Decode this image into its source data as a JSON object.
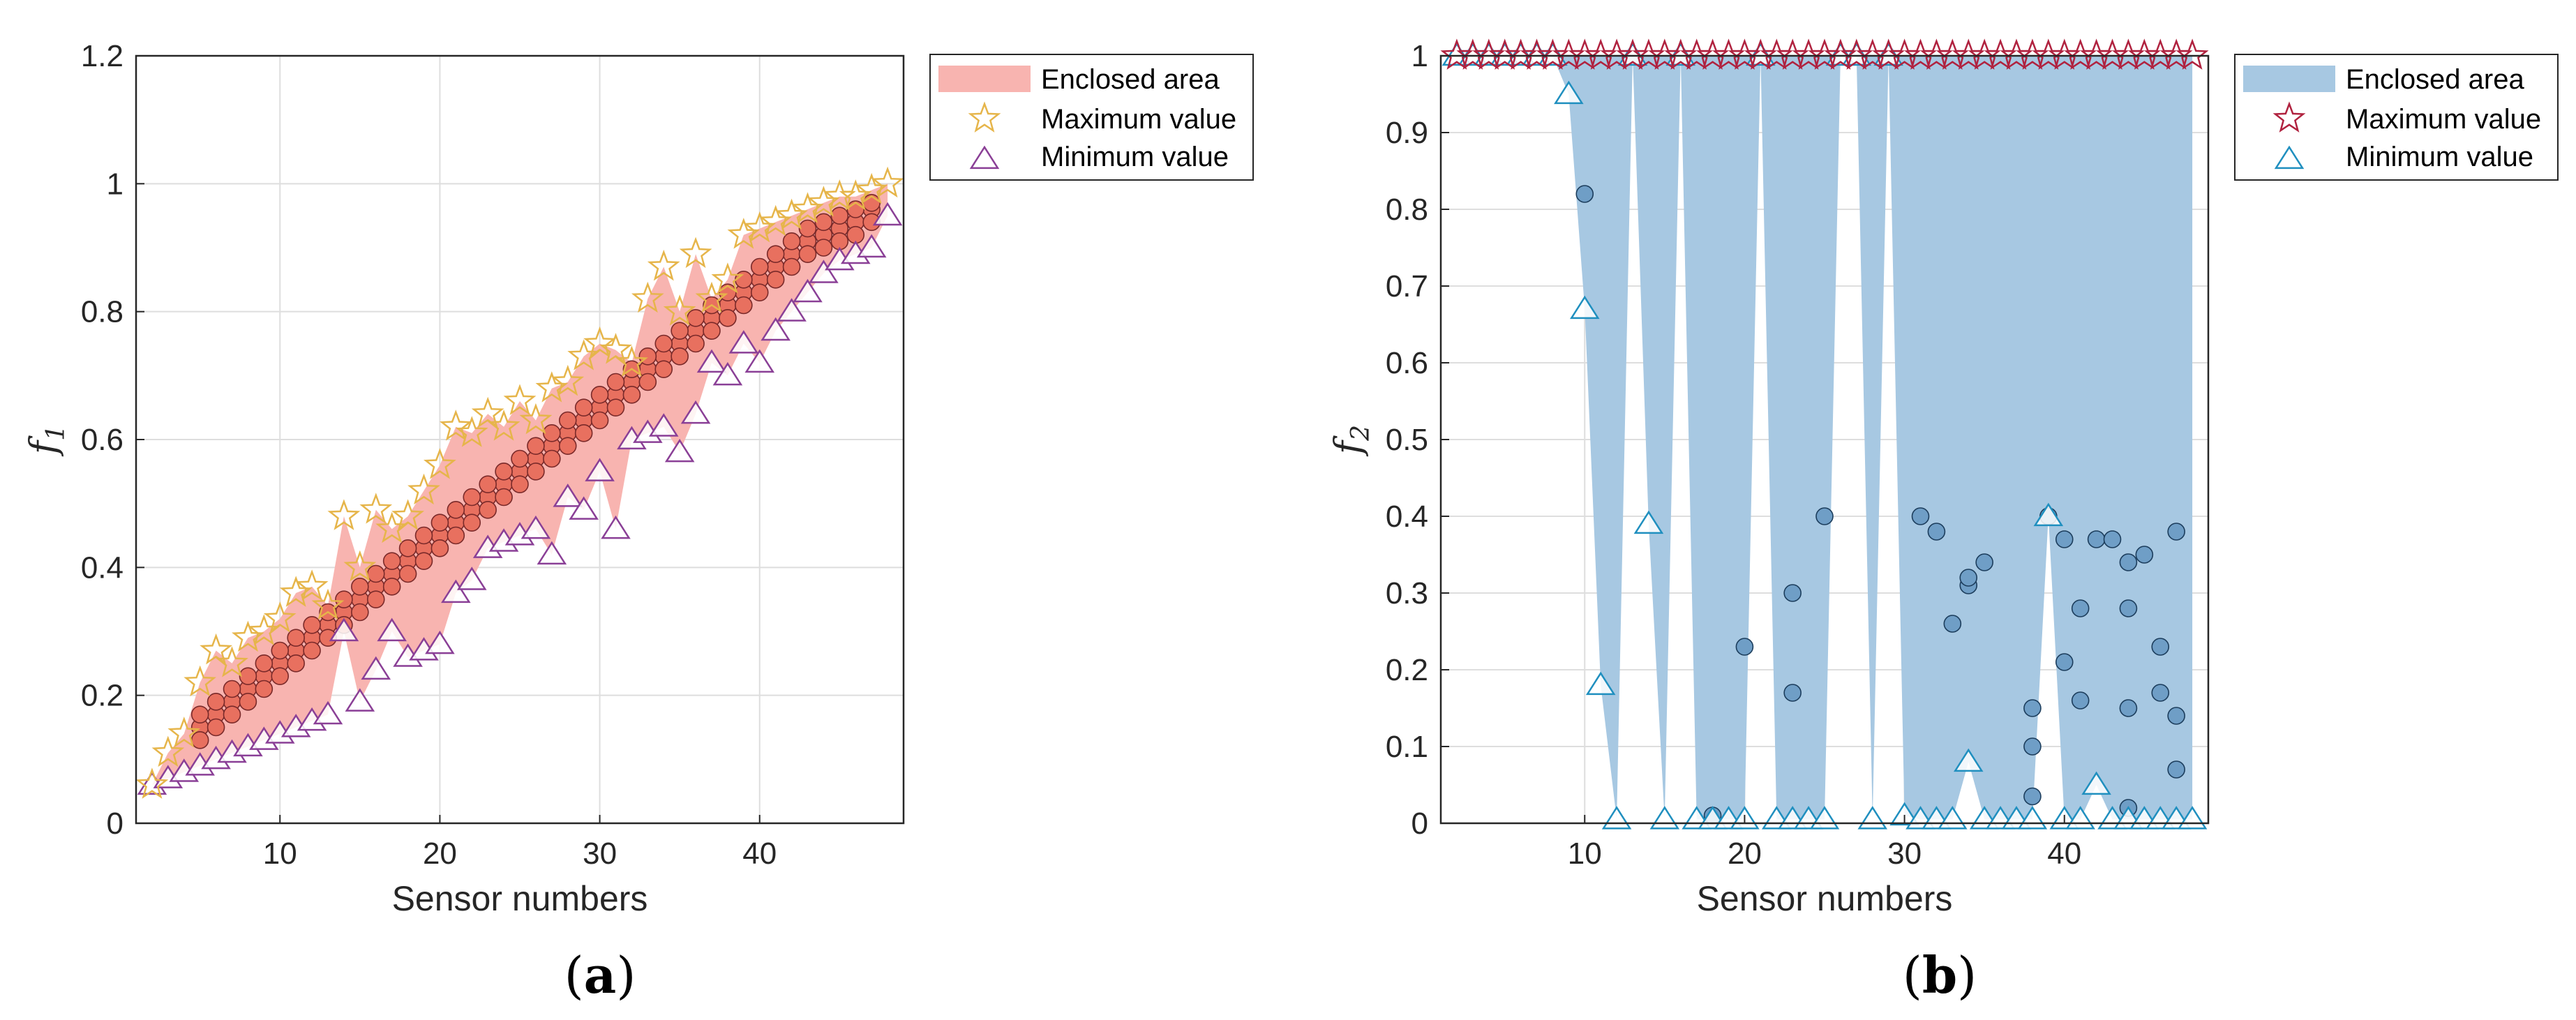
{
  "charts": [
    {
      "id": "a",
      "caption_open": "(",
      "caption_letter": "a",
      "caption_close": ")",
      "xlabel": "Sensor numbers",
      "ylabel_main": "f",
      "ylabel_sub": "1",
      "x_ticks": [
        "10",
        "20",
        "30",
        "40"
      ],
      "y_ticks": [
        "0",
        "0.2",
        "0.4",
        "0.6",
        "0.8",
        "1",
        "1.2"
      ],
      "legend": [
        "Enclosed area",
        "Maximum value",
        "Minimum value"
      ],
      "colors": {
        "area": "#f8b4b0",
        "max": "#e6b54a",
        "min": "#8a3f96",
        "dot_fill": "#e8705f",
        "dot_edge": "#7a2a2a"
      }
    },
    {
      "id": "b",
      "caption_open": "(",
      "caption_letter": "b",
      "caption_close": ")",
      "xlabel": "Sensor numbers",
      "ylabel_main": "f",
      "ylabel_sub": "2",
      "x_ticks": [
        "10",
        "20",
        "30",
        "40"
      ],
      "y_ticks": [
        "0",
        "0.1",
        "0.2",
        "0.3",
        "0.4",
        "0.5",
        "0.6",
        "0.7",
        "0.8",
        "0.9",
        "1"
      ],
      "legend": [
        "Enclosed area",
        "Maximum value",
        "Minimum value"
      ],
      "colors": {
        "area": "#a7c8e2",
        "max": "#b0223f",
        "min": "#1f8fbf",
        "dot_fill": "#6f9ec6",
        "dot_edge": "#1c3d5c"
      }
    }
  ],
  "chart_data": [
    {
      "type": "scatter",
      "xlabel": "Sensor numbers",
      "ylabel": "f1",
      "xlim": [
        1,
        49
      ],
      "ylim": [
        0,
        1.2
      ],
      "grid": true,
      "legend_position": "outside-right-top",
      "series": [
        {
          "name": "Enclosed area",
          "kind": "area"
        },
        {
          "name": "Maximum value",
          "marker": "star",
          "x": [
            2,
            3,
            4,
            5,
            6,
            7,
            8,
            9,
            10,
            11,
            12,
            13,
            14,
            15,
            16,
            17,
            18,
            19,
            20,
            21,
            22,
            23,
            24,
            25,
            26,
            27,
            28,
            29,
            30,
            31,
            32,
            33,
            34,
            35,
            36,
            37,
            38,
            39,
            40,
            41,
            42,
            43,
            44,
            45,
            46,
            47,
            48
          ],
          "y": [
            0.06,
            0.11,
            0.14,
            0.22,
            0.27,
            0.25,
            0.29,
            0.3,
            0.32,
            0.36,
            0.37,
            0.34,
            0.48,
            0.4,
            0.49,
            0.46,
            0.48,
            0.52,
            0.56,
            0.62,
            0.61,
            0.64,
            0.62,
            0.66,
            0.63,
            0.68,
            0.69,
            0.73,
            0.75,
            0.74,
            0.72,
            0.82,
            0.87,
            0.8,
            0.89,
            0.82,
            0.85,
            0.92,
            0.93,
            0.94,
            0.95,
            0.96,
            0.97,
            0.98,
            0.98,
            0.99,
            1.0
          ]
        },
        {
          "name": "Minimum value",
          "marker": "triangle",
          "x": [
            2,
            3,
            4,
            5,
            6,
            7,
            8,
            9,
            10,
            11,
            12,
            13,
            14,
            15,
            16,
            17,
            18,
            19,
            20,
            21,
            22,
            23,
            24,
            25,
            26,
            27,
            28,
            29,
            30,
            31,
            32,
            33,
            34,
            35,
            36,
            37,
            38,
            39,
            40,
            41,
            42,
            43,
            44,
            45,
            46,
            47,
            48
          ],
          "y": [
            0.06,
            0.07,
            0.08,
            0.09,
            0.1,
            0.11,
            0.12,
            0.13,
            0.14,
            0.15,
            0.16,
            0.17,
            0.3,
            0.19,
            0.24,
            0.3,
            0.26,
            0.27,
            0.28,
            0.36,
            0.38,
            0.43,
            0.44,
            0.45,
            0.46,
            0.42,
            0.51,
            0.49,
            0.55,
            0.46,
            0.6,
            0.61,
            0.62,
            0.58,
            0.64,
            0.72,
            0.7,
            0.75,
            0.72,
            0.77,
            0.8,
            0.83,
            0.86,
            0.88,
            0.89,
            0.9,
            0.95
          ]
        },
        {
          "name": "",
          "marker": "circle",
          "note": "f1 value per sensor",
          "x": [
            5,
            6,
            7,
            8,
            9,
            10,
            11,
            12,
            13,
            14,
            15,
            16,
            17,
            18,
            19,
            20,
            21,
            22,
            23,
            24,
            25,
            26,
            27,
            28,
            29,
            30,
            31,
            32,
            33,
            34,
            35,
            36,
            37,
            38,
            39,
            40,
            41,
            42,
            43,
            44,
            45,
            46,
            47,
            5,
            6,
            7,
            8,
            9,
            10,
            11,
            12,
            13,
            14,
            15,
            16,
            17,
            18,
            19,
            20,
            21,
            22,
            23,
            24,
            25,
            26,
            27,
            28,
            29,
            30,
            31,
            32,
            33,
            34,
            35,
            36,
            37,
            38,
            39,
            40,
            41,
            42,
            43,
            44,
            45,
            46,
            47,
            5,
            6,
            7,
            8,
            9,
            10,
            11,
            12,
            13,
            14,
            15,
            16,
            17,
            18,
            19,
            20,
            21,
            22,
            23,
            24,
            25,
            26,
            27,
            28,
            29,
            30,
            31,
            32,
            33,
            34,
            35,
            36,
            37,
            38,
            39,
            40,
            41,
            42,
            43,
            44,
            45,
            46,
            47
          ],
          "y": [
            0.15,
            0.17,
            0.19,
            0.21,
            0.23,
            0.25,
            0.27,
            0.29,
            0.31,
            0.33,
            0.35,
            0.37,
            0.39,
            0.41,
            0.43,
            0.45,
            0.47,
            0.49,
            0.51,
            0.53,
            0.55,
            0.57,
            0.59,
            0.61,
            0.63,
            0.65,
            0.67,
            0.69,
            0.71,
            0.73,
            0.75,
            0.77,
            0.79,
            0.81,
            0.83,
            0.85,
            0.87,
            0.89,
            0.91,
            0.92,
            0.93,
            0.94,
            0.96,
            0.13,
            0.15,
            0.17,
            0.19,
            0.21,
            0.23,
            0.25,
            0.27,
            0.29,
            0.31,
            0.33,
            0.35,
            0.37,
            0.39,
            0.41,
            0.43,
            0.45,
            0.47,
            0.49,
            0.51,
            0.53,
            0.55,
            0.57,
            0.59,
            0.61,
            0.63,
            0.65,
            0.67,
            0.69,
            0.71,
            0.73,
            0.75,
            0.77,
            0.79,
            0.81,
            0.83,
            0.85,
            0.87,
            0.89,
            0.9,
            0.91,
            0.92,
            0.94,
            0.17,
            0.19,
            0.21,
            0.23,
            0.25,
            0.27,
            0.29,
            0.31,
            0.33,
            0.35,
            0.37,
            0.39,
            0.41,
            0.43,
            0.45,
            0.47,
            0.49,
            0.51,
            0.53,
            0.55,
            0.57,
            0.59,
            0.61,
            0.63,
            0.65,
            0.67,
            0.69,
            0.71,
            0.73,
            0.75,
            0.77,
            0.79,
            0.81,
            0.83,
            0.85,
            0.87,
            0.89,
            0.91,
            0.93,
            0.94,
            0.95,
            0.96,
            0.97
          ]
        }
      ]
    },
    {
      "type": "scatter",
      "xlabel": "Sensor numbers",
      "ylabel": "f2",
      "xlim": [
        1,
        49
      ],
      "ylim": [
        0,
        1
      ],
      "grid": true,
      "legend_position": "outside-right-top",
      "series": [
        {
          "name": "Enclosed area",
          "kind": "area"
        },
        {
          "name": "Maximum value",
          "marker": "star",
          "x": [
            2,
            3,
            4,
            5,
            6,
            7,
            8,
            9,
            10,
            11,
            12,
            13,
            14,
            15,
            16,
            17,
            18,
            19,
            20,
            21,
            22,
            23,
            24,
            25,
            26,
            27,
            28,
            29,
            30,
            31,
            32,
            33,
            34,
            35,
            36,
            37,
            38,
            39,
            40,
            41,
            42,
            43,
            44,
            45,
            46,
            47,
            48
          ],
          "y": [
            1,
            1,
            1,
            1,
            1,
            1,
            1,
            1,
            1,
            1,
            1,
            1,
            1,
            1,
            1,
            1,
            1,
            1,
            1,
            1,
            1,
            1,
            1,
            1,
            1,
            1,
            1,
            1,
            1,
            1,
            1,
            1,
            1,
            1,
            1,
            1,
            1,
            1,
            1,
            1,
            1,
            1,
            1,
            1,
            1,
            1,
            1
          ]
        },
        {
          "name": "Minimum value",
          "marker": "triangle",
          "x": [
            2,
            3,
            4,
            5,
            6,
            7,
            8,
            9,
            10,
            11,
            12,
            13,
            14,
            15,
            16,
            17,
            18,
            19,
            20,
            21,
            22,
            23,
            24,
            25,
            26,
            27,
            28,
            29,
            30,
            31,
            32,
            33,
            34,
            35,
            36,
            37,
            38,
            39,
            40,
            41,
            42,
            43,
            44,
            45,
            46,
            47,
            48
          ],
          "y": [
            1,
            1,
            1,
            1,
            1,
            1,
            1,
            0.95,
            0.67,
            0.18,
            0.005,
            1,
            0.39,
            0.005,
            1,
            0.005,
            0.005,
            0.005,
            0.005,
            1,
            0.005,
            0.005,
            0.005,
            0.005,
            1,
            1,
            0.005,
            1,
            0.01,
            0.005,
            0.005,
            0.005,
            0.08,
            0.005,
            0.005,
            0.005,
            0.005,
            0.4,
            0.005,
            0.005,
            0.05,
            0.005,
            0.005,
            0.005,
            0.005,
            0.005,
            0.005
          ]
        },
        {
          "name": "",
          "marker": "circle",
          "note": "f2 value per sensor",
          "x": [
            10,
            18,
            20,
            23,
            23,
            25,
            31,
            32,
            33,
            34,
            34,
            35,
            38,
            38,
            38,
            39,
            40,
            40,
            41,
            41,
            42,
            43,
            44,
            44,
            44,
            44,
            45,
            46,
            46,
            47,
            47,
            47
          ],
          "y": [
            0.82,
            0.01,
            0.23,
            0.3,
            0.17,
            0.4,
            0.4,
            0.38,
            0.26,
            0.31,
            0.32,
            0.34,
            0.15,
            0.1,
            0.035,
            0.4,
            0.37,
            0.21,
            0.28,
            0.16,
            0.37,
            0.37,
            0.34,
            0.28,
            0.15,
            0.02,
            0.35,
            0.23,
            0.17,
            0.38,
            0.14,
            0.07
          ]
        }
      ]
    }
  ]
}
